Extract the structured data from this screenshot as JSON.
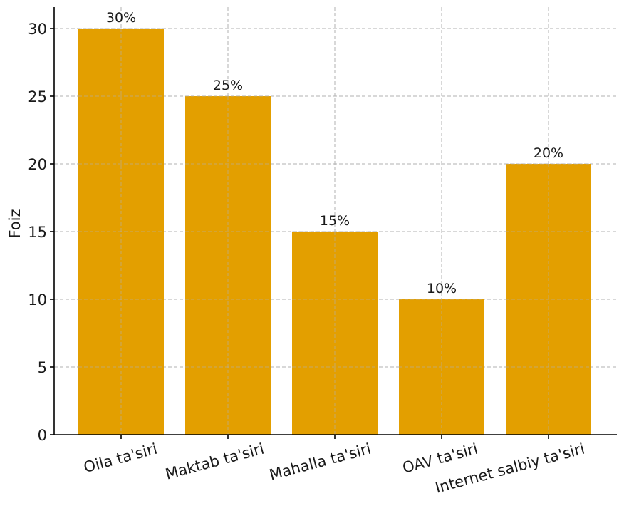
{
  "chart_data": {
    "type": "bar",
    "title": "",
    "xlabel": "",
    "ylabel": "Foiz",
    "categories": [
      "Oila ta'siri",
      "Maktab ta'siri",
      "Mahalla ta'siri",
      "OAV ta'siri",
      "Internet salbiy ta'siri"
    ],
    "values": [
      30,
      25,
      15,
      10,
      20
    ],
    "data_labels": [
      "30%",
      "25%",
      "15%",
      "10%",
      "20%"
    ],
    "yticks": [
      0,
      5,
      10,
      15,
      20,
      25,
      30
    ],
    "ylim": [
      0,
      31.5
    ],
    "grid": true,
    "bar_color": "#e39f00"
  }
}
